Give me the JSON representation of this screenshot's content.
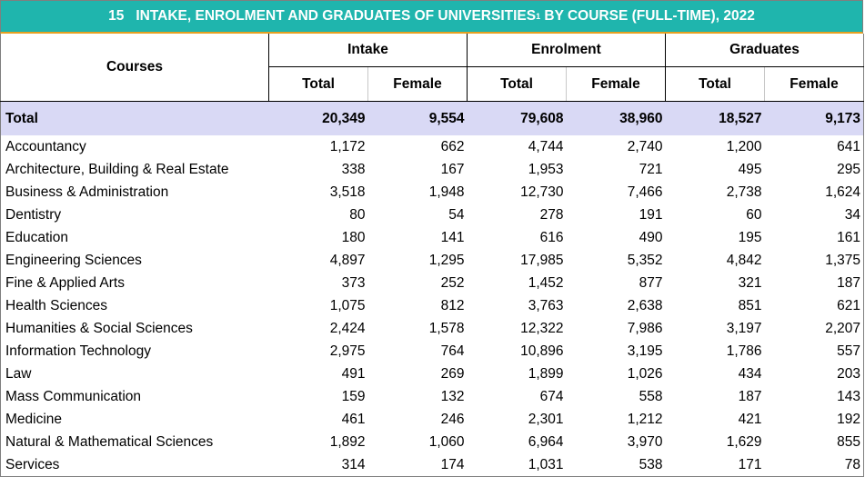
{
  "title": {
    "number": "15",
    "text_before": "INTAKE, ENROLMENT AND GRADUATES OF UNIVERSITIES",
    "footnote_mark": "1",
    "text_after": " BY COURSE (FULL-TIME), 2022"
  },
  "header": {
    "courses_label": "Courses",
    "groups": [
      "Intake",
      "Enrolment",
      "Graduates"
    ],
    "subcolumns": [
      "Total",
      "Female",
      "Total",
      "Female",
      "Total",
      "Female"
    ]
  },
  "total_row": {
    "label": "Total",
    "values": [
      "20,349",
      "9,554",
      "79,608",
      "38,960",
      "18,527",
      "9,173"
    ]
  },
  "rows": [
    {
      "course": "Accountancy",
      "values": [
        "1,172",
        "662",
        "4,744",
        "2,740",
        "1,200",
        "641"
      ]
    },
    {
      "course": "Architecture, Building & Real Estate",
      "values": [
        "338",
        "167",
        "1,953",
        "721",
        "495",
        "295"
      ]
    },
    {
      "course": "Business & Administration",
      "values": [
        "3,518",
        "1,948",
        "12,730",
        "7,466",
        "2,738",
        "1,624"
      ]
    },
    {
      "course": "Dentistry",
      "values": [
        "80",
        "54",
        "278",
        "191",
        "60",
        "34"
      ]
    },
    {
      "course": "Education",
      "values": [
        "180",
        "141",
        "616",
        "490",
        "195",
        "161"
      ]
    },
    {
      "course": "Engineering Sciences",
      "values": [
        "4,897",
        "1,295",
        "17,985",
        "5,352",
        "4,842",
        "1,375"
      ]
    },
    {
      "course": "Fine & Applied Arts",
      "values": [
        "373",
        "252",
        "1,452",
        "877",
        "321",
        "187"
      ]
    },
    {
      "course": "Health Sciences",
      "values": [
        "1,075",
        "812",
        "3,763",
        "2,638",
        "851",
        "621"
      ]
    },
    {
      "course": "Humanities & Social Sciences",
      "values": [
        "2,424",
        "1,578",
        "12,322",
        "7,986",
        "3,197",
        "2,207"
      ]
    },
    {
      "course": "Information Technology",
      "values": [
        "2,975",
        "764",
        "10,896",
        "3,195",
        "1,786",
        "557"
      ]
    },
    {
      "course": "Law",
      "values": [
        "491",
        "269",
        "1,899",
        "1,026",
        "434",
        "203"
      ]
    },
    {
      "course": "Mass Communication",
      "values": [
        "159",
        "132",
        "674",
        "558",
        "187",
        "143"
      ]
    },
    {
      "course": "Medicine",
      "values": [
        "461",
        "246",
        "2,301",
        "1,212",
        "421",
        "192"
      ]
    },
    {
      "course": "Natural & Mathematical Sciences",
      "values": [
        "1,892",
        "1,060",
        "6,964",
        "3,970",
        "1,629",
        "855"
      ]
    },
    {
      "course": "Services",
      "values": [
        "314",
        "174",
        "1,031",
        "538",
        "171",
        "78"
      ]
    }
  ],
  "colors": {
    "title_background": "#1fb5ad",
    "title_text": "#ffffff",
    "title_underline": "#e6a020",
    "total_row_background": "#d9d9f5"
  }
}
